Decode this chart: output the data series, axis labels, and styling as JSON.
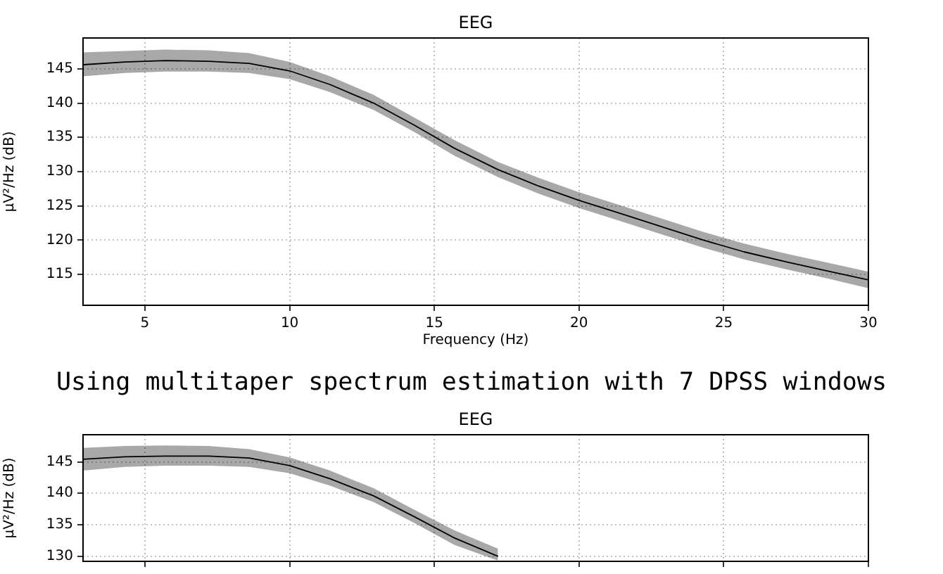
{
  "chart_data": [
    {
      "type": "line",
      "title": "EEG",
      "xlabel": "Frequency (Hz)",
      "ylabel": "µV²/Hz (dB)",
      "x": [
        2.86,
        4.3,
        5.7,
        7.2,
        8.6,
        10,
        11.4,
        12.9,
        14.3,
        15.7,
        17.2,
        18.6,
        20,
        21.5,
        22.9,
        24.3,
        25.7,
        27.2,
        28.6,
        30
      ],
      "series": [
        {
          "color": "#000000",
          "values": [
            145.6,
            146.0,
            146.2,
            146.1,
            145.8,
            144.7,
            142.7,
            140.0,
            136.8,
            133.4,
            130.3,
            127.9,
            125.8,
            123.8,
            121.9,
            120.0,
            118.3,
            116.8,
            115.5,
            114.2
          ],
          "lower": [
            143.9,
            144.4,
            144.6,
            144.6,
            144.4,
            143.5,
            141.6,
            139.0,
            135.8,
            132.3,
            129.2,
            126.8,
            124.7,
            122.7,
            120.8,
            118.9,
            117.2,
            115.7,
            114.4,
            113.0
          ],
          "upper": [
            147.4,
            147.6,
            147.8,
            147.7,
            147.3,
            146.0,
            143.9,
            141.2,
            137.9,
            134.6,
            131.4,
            129.1,
            127.0,
            125.0,
            123.1,
            121.2,
            119.5,
            118.0,
            116.7,
            115.4
          ]
        }
      ],
      "xlim": [
        2.86,
        30
      ],
      "xticks": [
        5,
        10,
        15,
        20,
        25,
        30
      ],
      "ylim": [
        110.5,
        149.5
      ],
      "yticks": [
        115,
        120,
        125,
        130,
        135,
        140,
        145
      ],
      "grid": true,
      "legend": false,
      "marker": "none",
      "line_style": "solid",
      "annotations": [
        "Using multitaper spectrum estimation with 7 DPSS windows"
      ]
    },
    {
      "type": "line",
      "title": "EEG",
      "ylabel": "µV²/Hz (dB)",
      "x": [
        2.86,
        4.3,
        5.7,
        7.2,
        8.6,
        10,
        11.4,
        12.9,
        14.3,
        15.7,
        17.2
      ],
      "series": [
        {
          "color": "#000000",
          "values": [
            145.4,
            145.8,
            145.9,
            145.9,
            145.6,
            144.4,
            142.3,
            139.6,
            136.3,
            132.9,
            130.0
          ],
          "lower": [
            143.6,
            144.2,
            144.4,
            144.4,
            144.2,
            143.2,
            141.2,
            138.6,
            135.3,
            131.8,
            129.3
          ],
          "upper": [
            147.2,
            147.5,
            147.6,
            147.5,
            147.0,
            145.7,
            143.6,
            140.8,
            137.4,
            134.1,
            131.2
          ]
        }
      ],
      "xlim": [
        2.86,
        30
      ],
      "xticks": [
        5,
        10,
        15,
        20,
        25,
        30
      ],
      "ylim": [
        129.2,
        149.3
      ],
      "yticks": [
        130,
        135,
        140,
        145
      ],
      "grid": true,
      "legend": false,
      "marker": "none",
      "line_style": "solid",
      "tick_labels": "y"
    }
  ]
}
